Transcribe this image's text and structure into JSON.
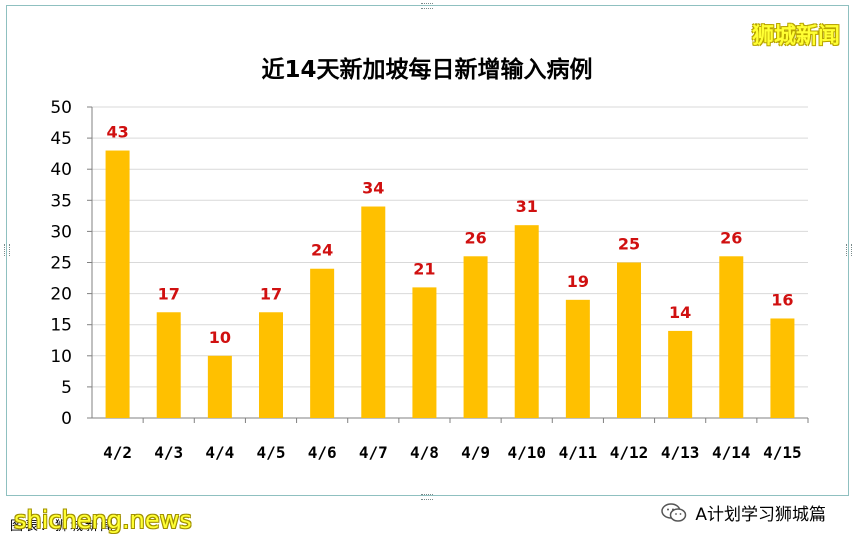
{
  "watermark_top": "狮城新闻",
  "footer": {
    "source": "图表：狮城新闻",
    "site": "shicheng.news",
    "account": "A计划学习狮城篇",
    "account_icon": "wechat-icon"
  },
  "chart_data": {
    "type": "bar",
    "title": "近14天新加坡每日新增输入病例",
    "categories": [
      "4/2",
      "4/3",
      "4/4",
      "4/5",
      "4/6",
      "4/7",
      "4/8",
      "4/9",
      "4/10",
      "4/11",
      "4/12",
      "4/13",
      "4/14",
      "4/15"
    ],
    "values": [
      43,
      17,
      10,
      17,
      24,
      34,
      21,
      26,
      31,
      19,
      25,
      14,
      26,
      16
    ],
    "ylim": [
      0,
      50
    ],
    "yticks": [
      0,
      5,
      10,
      15,
      20,
      25,
      30,
      35,
      40,
      45,
      50
    ],
    "grid": true,
    "legend": "none",
    "colors": {
      "bar": "#ffc000",
      "data_label": "#d01010",
      "grid": "#d9d9d9"
    }
  }
}
